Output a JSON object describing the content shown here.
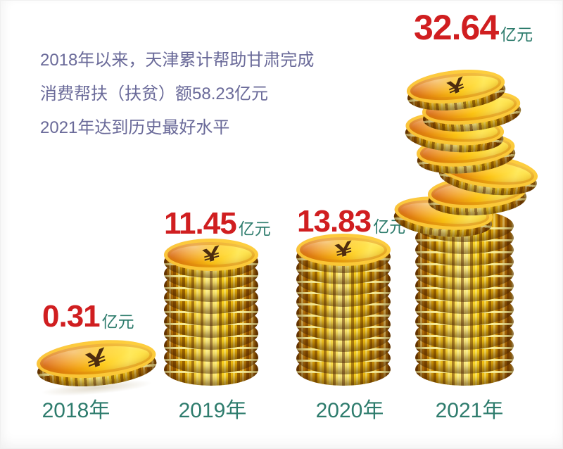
{
  "intro": {
    "lines": [
      "2018年以来，天津累计帮助甘肃完成",
      "消费帮扶（扶贫）额58.23亿元",
      "2021年达到历史最好水平"
    ]
  },
  "coin_symbol": "¥",
  "colors": {
    "value_red": "#d01e20",
    "teal": "#2e7c6d",
    "intro_text": "#6a6a99",
    "coin_gold": "#ffd816"
  },
  "chart_data": {
    "type": "bar",
    "categories": [
      "2018年",
      "2019年",
      "2020年",
      "2021年"
    ],
    "values": [
      0.31,
      11.45,
      13.83,
      32.64
    ],
    "unit": "亿元",
    "ylim": [
      0,
      35
    ],
    "grid": false,
    "legend": "none",
    "bars": [
      {
        "year": "2018年",
        "value_label": "0.31",
        "unit": "亿元",
        "coins": 1
      },
      {
        "year": "2019年",
        "value_label": "11.45",
        "unit": "亿元",
        "coins": 10
      },
      {
        "year": "2020年",
        "value_label": "13.83",
        "unit": "亿元",
        "coins": 11
      },
      {
        "year": "2021年",
        "value_label": "32.64",
        "unit": "亿元",
        "coins": 13,
        "messy_coins": 7
      }
    ]
  }
}
